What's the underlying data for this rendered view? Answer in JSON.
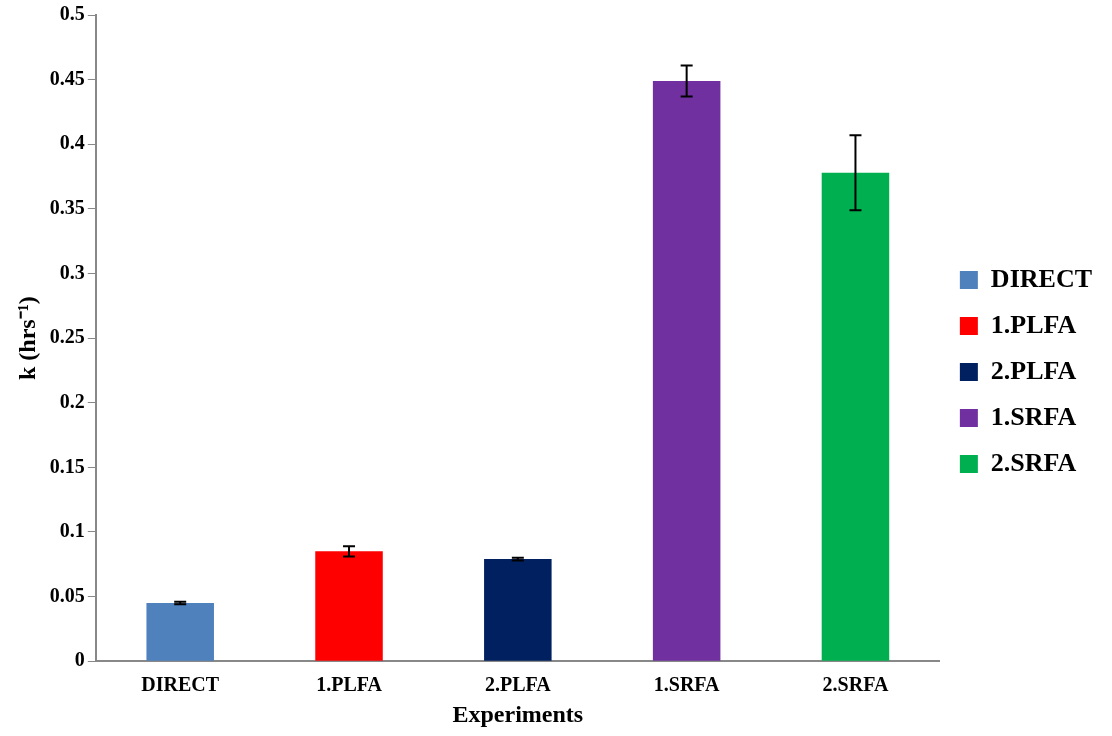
{
  "chart_data": {
    "type": "bar",
    "xlabel": "Experiments",
    "ylabel": "k (hrs⁻¹)",
    "categories": [
      "DIRECT",
      "1.PLFA",
      "2.PLFA",
      "1.SRFA",
      "2.SRFA"
    ],
    "series": [
      {
        "name": "DIRECT",
        "color": "#4f81bd",
        "values": [
          0.045,
          null,
          null,
          null,
          null
        ],
        "errors": [
          0.001,
          null,
          null,
          null,
          null
        ]
      },
      {
        "name": "1.PLFA",
        "color": "#ff0000",
        "values": [
          null,
          0.085,
          null,
          null,
          null
        ],
        "errors": [
          null,
          0.004,
          null,
          null,
          null
        ]
      },
      {
        "name": "2.PLFA",
        "color": "#002060",
        "values": [
          null,
          null,
          0.079,
          null,
          null
        ],
        "errors": [
          null,
          null,
          0.001,
          null,
          null
        ]
      },
      {
        "name": "1.SRFA",
        "color": "#7030a0",
        "values": [
          null,
          null,
          null,
          0.449,
          null
        ],
        "errors": [
          null,
          null,
          null,
          0.012,
          null
        ]
      },
      {
        "name": "2.SRFA",
        "color": "#00b050",
        "values": [
          null,
          null,
          null,
          null,
          0.378
        ],
        "errors": [
          null,
          null,
          null,
          null,
          0.029
        ]
      }
    ],
    "ylim": [
      0,
      0.5
    ],
    "yticks": [
      0,
      0.05,
      0.1,
      0.15,
      0.2,
      0.25,
      0.3,
      0.35,
      0.4,
      0.45,
      0.5
    ],
    "grid": false,
    "legend": "right"
  }
}
